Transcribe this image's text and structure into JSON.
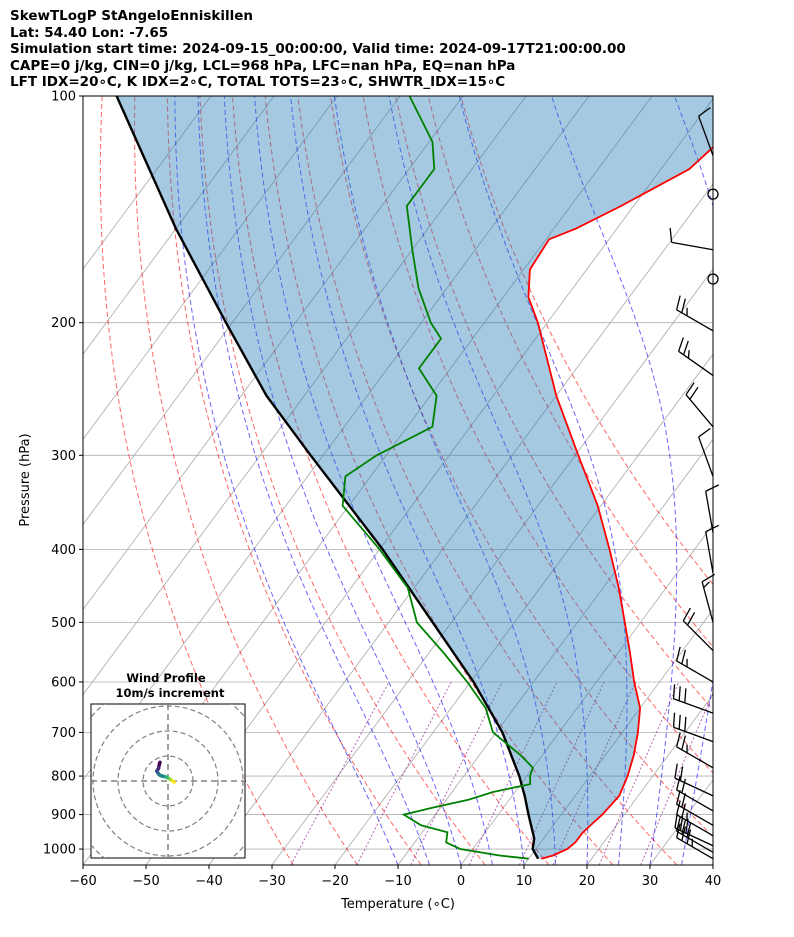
{
  "chart_data": {
    "type": "skewt-logp",
    "title": "SkewTLogP StAngeloEnniskillen",
    "header_lines": [
      "SkewTLogP StAngeloEnniskillen",
      "Lat: 54.40   Lon: -7.65",
      "Simulation start time: 2024-09-15_00:00:00, Valid time: 2024-09-17T21:00:00.00",
      "CAPE=0 j/kg, CIN=0 j/kg, LCL=968 hPa, LFC=nan hPa, EQ=nan hPa",
      "LFT IDX=20∘C, K IDX=2∘C, TOTAL TOTS=23∘C, SHWTR_IDX=15∘C"
    ],
    "xlabel": "Temperature (∘C)",
    "ylabel": "Pressure (hPa)",
    "xlim": [
      -60,
      40
    ],
    "ylim": [
      1050,
      100
    ],
    "x_ticks": [
      -60,
      -50,
      -40,
      -30,
      -20,
      -10,
      0,
      10,
      20,
      30,
      40
    ],
    "y_ticks": [
      100,
      200,
      300,
      400,
      500,
      600,
      700,
      800,
      900,
      1000
    ],
    "grid": true,
    "temperature_profile": {
      "name": "Temperature",
      "color": "#ff0000",
      "pressure": [
        1030,
        1020,
        1000,
        980,
        950,
        925,
        900,
        850,
        800,
        750,
        700,
        650,
        600,
        550,
        500,
        450,
        400,
        350,
        300,
        250,
        200,
        185,
        170,
        155,
        150,
        140,
        125,
        115,
        100
      ],
      "temp": [
        12.0,
        13.5,
        15.0,
        15.5,
        15.5,
        16.0,
        16.5,
        17.0,
        16.0,
        14.5,
        12.5,
        10.0,
        6.0,
        2.0,
        -2.5,
        -7.5,
        -13.5,
        -20.5,
        -29.5,
        -40.0,
        -51.5,
        -56.0,
        -59.0,
        -59.5,
        -56.5,
        -52.0,
        -45.5,
        -44.0,
        -42.0
      ]
    },
    "dewpoint_profile": {
      "name": "Dewpoint",
      "color": "#008000",
      "pressure": [
        1030,
        1020,
        1000,
        980,
        950,
        930,
        900,
        880,
        860,
        840,
        820,
        800,
        780,
        750,
        700,
        650,
        600,
        550,
        500,
        450,
        400,
        350,
        320,
        300,
        275,
        250,
        230,
        210,
        200,
        180,
        160,
        140,
        125,
        115,
        100
      ],
      "temp": [
        10.0,
        5.0,
        -2.0,
        -5.0,
        -6.0,
        -11.0,
        -15.0,
        -11.0,
        -6.5,
        -3.5,
        1.5,
        0.5,
        0.0,
        -3.5,
        -10.5,
        -14.5,
        -20.5,
        -27.5,
        -35.5,
        -41.0,
        -50.0,
        -61.0,
        -64.0,
        -61.5,
        -56.0,
        -59.0,
        -65.0,
        -65.0,
        -68.5,
        -74.5,
        -80.0,
        -86.0,
        -86.0,
        -89.5,
        -98.5
      ]
    },
    "parcel_profile": {
      "name": "Parcel",
      "color": "#000000",
      "pressure": [
        1030,
        1000,
        968,
        900,
        850,
        800,
        700,
        600,
        500,
        400,
        300,
        250,
        200,
        150,
        100
      ],
      "temp": [
        11.5,
        9.5,
        8.5,
        4.8,
        2.0,
        -1.2,
        -9.0,
        -19.5,
        -33.0,
        -49.5,
        -72.0,
        -86.0,
        -101.0,
        -120.0,
        -145.0
      ]
    },
    "reference_lines": {
      "isotherms_C": [
        -130,
        -120,
        -110,
        -100,
        -90,
        -80,
        -70,
        -60,
        -50,
        -40,
        -30,
        -20,
        -10,
        0,
        10,
        20,
        30,
        40
      ],
      "dry_adiabats_theta_C": [
        -30,
        -20,
        -10,
        0,
        10,
        20,
        30,
        40,
        50,
        60,
        70,
        80
      ],
      "moist_adiabats_start_C": [
        -10,
        -5,
        0,
        5,
        10,
        15,
        20,
        25,
        30,
        35
      ],
      "mixing_ratio_g_per_kg": [
        0.4,
        1,
        2,
        4,
        7,
        10,
        16,
        24
      ],
      "colors": {
        "isotherm": "#a9a9a9",
        "dry_adiabat": "#ff0000",
        "moist_adiabat": "#0000ff",
        "mixing_ratio": "#800080"
      }
    },
    "wind_barbs": {
      "pressure": [
        1030,
        1010,
        990,
        960,
        930,
        890,
        850,
        780,
        720,
        660,
        600,
        545,
        500,
        430,
        380,
        320,
        275,
        235,
        205,
        175,
        160,
        135,
        120
      ],
      "speed_knots": [
        35,
        30,
        30,
        25,
        20,
        20,
        20,
        25,
        30,
        30,
        25,
        20,
        15,
        10,
        10,
        10,
        20,
        25,
        25,
        0,
        10,
        0,
        10
      ],
      "direction_deg": [
        300,
        300,
        295,
        300,
        300,
        300,
        295,
        300,
        290,
        290,
        300,
        315,
        345,
        350,
        350,
        340,
        320,
        305,
        300,
        0,
        280,
        0,
        340
      ]
    },
    "hodograph": {
      "title": "Wind Profile",
      "subtitle": "10m/s increment",
      "ring_step_ms": 10,
      "ring_count": 4,
      "u": [
        2.5,
        1.8,
        1.0,
        0.3,
        -0.5,
        -1.5,
        -2.5,
        -3.5,
        -4.0,
        -4.5,
        -3.8,
        -3.5,
        -3.2
      ],
      "v": [
        -0.5,
        0.0,
        0.6,
        1.0,
        1.5,
        1.8,
        2.0,
        2.5,
        3.2,
        4.0,
        5.0,
        6.5,
        7.5
      ],
      "colormap": [
        "#fde725",
        "#b5de2b",
        "#6ece58",
        "#35b779",
        "#1f9e89",
        "#26828e",
        "#31688e",
        "#3e4989",
        "#482878",
        "#440154"
      ]
    }
  }
}
